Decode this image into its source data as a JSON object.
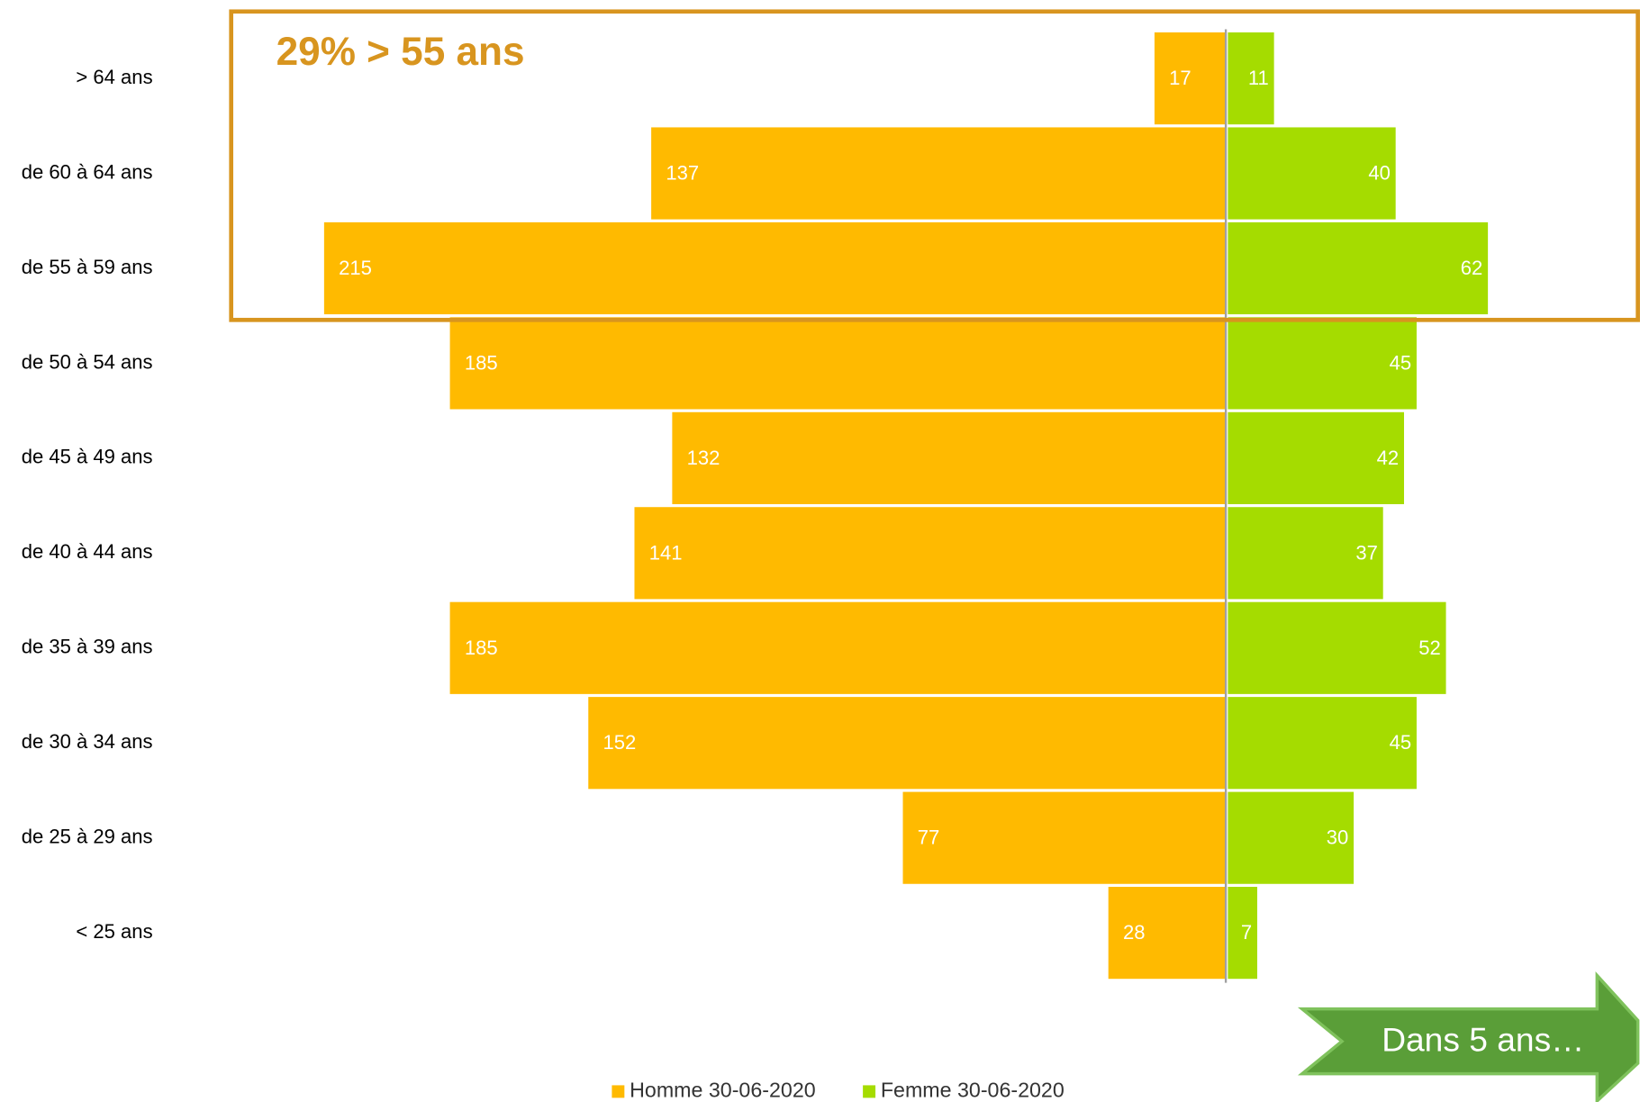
{
  "chart_data": {
    "type": "pyramid",
    "annotation": "29% > 55 ans",
    "annotation_color": "#d8951f",
    "categories": [
      "> 64 ans",
      "de 60 à 64 ans",
      "de 55 à 59 ans",
      "de 50 à 54 ans",
      "de 45 à 49 ans",
      "de 40 à 44 ans",
      "de 35 à 39 ans",
      "de 30 à 34 ans",
      "de 25 à 29 ans",
      "< 25 ans"
    ],
    "series": [
      {
        "name": "Homme 30-06-2020",
        "color": "#ffba00",
        "side": "left",
        "values": [
          17,
          137,
          215,
          185,
          132,
          141,
          185,
          152,
          77,
          28
        ]
      },
      {
        "name": "Femme 30-06-2020",
        "color": "#a5dc00",
        "side": "right",
        "values": [
          11,
          40,
          62,
          45,
          42,
          37,
          52,
          45,
          30,
          7
        ]
      }
    ],
    "legend": "bottom"
  },
  "button": {
    "label": "Dans 5 ans…",
    "color": "#5a9e38"
  }
}
